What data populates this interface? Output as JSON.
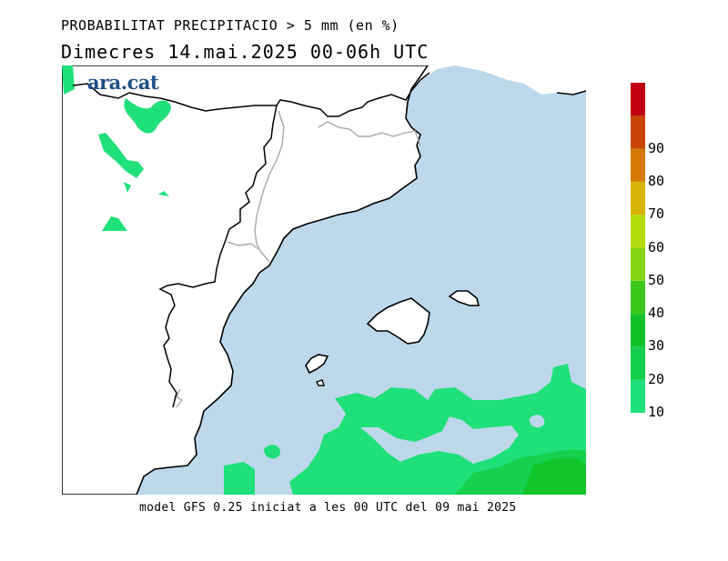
{
  "header": {
    "line1": "PROBABILITAT PRECIPITACIO > 5 mm (en %)",
    "line2": "Dimecres  14.mai.2025 00-06h UTC",
    "brand": "ara.cat"
  },
  "footer": {
    "text": "model GFS 0.25 iniciat a les 00 UTC del 09 mai 2025"
  },
  "colorbar": {
    "levels": [
      {
        "label": "10",
        "color": "#1fe07a"
      },
      {
        "label": "20",
        "color": "#14cf4c"
      },
      {
        "label": "30",
        "color": "#12c02a"
      },
      {
        "label": "40",
        "color": "#3bc81c"
      },
      {
        "label": "50",
        "color": "#86d612"
      },
      {
        "label": "60",
        "color": "#b6dc10"
      },
      {
        "label": "70",
        "color": "#d9b408"
      },
      {
        "label": "80",
        "color": "#d67a06"
      },
      {
        "label": "90",
        "color": "#c84406"
      },
      {
        "label": "",
        "color": "#c00010"
      }
    ]
  },
  "map": {
    "sea_color": "#bcd8ea",
    "land_color": "#ffffff",
    "precip_colors": {
      "low": "#20e07a",
      "mid": "#16d04e",
      "high": "#10c42a"
    }
  }
}
